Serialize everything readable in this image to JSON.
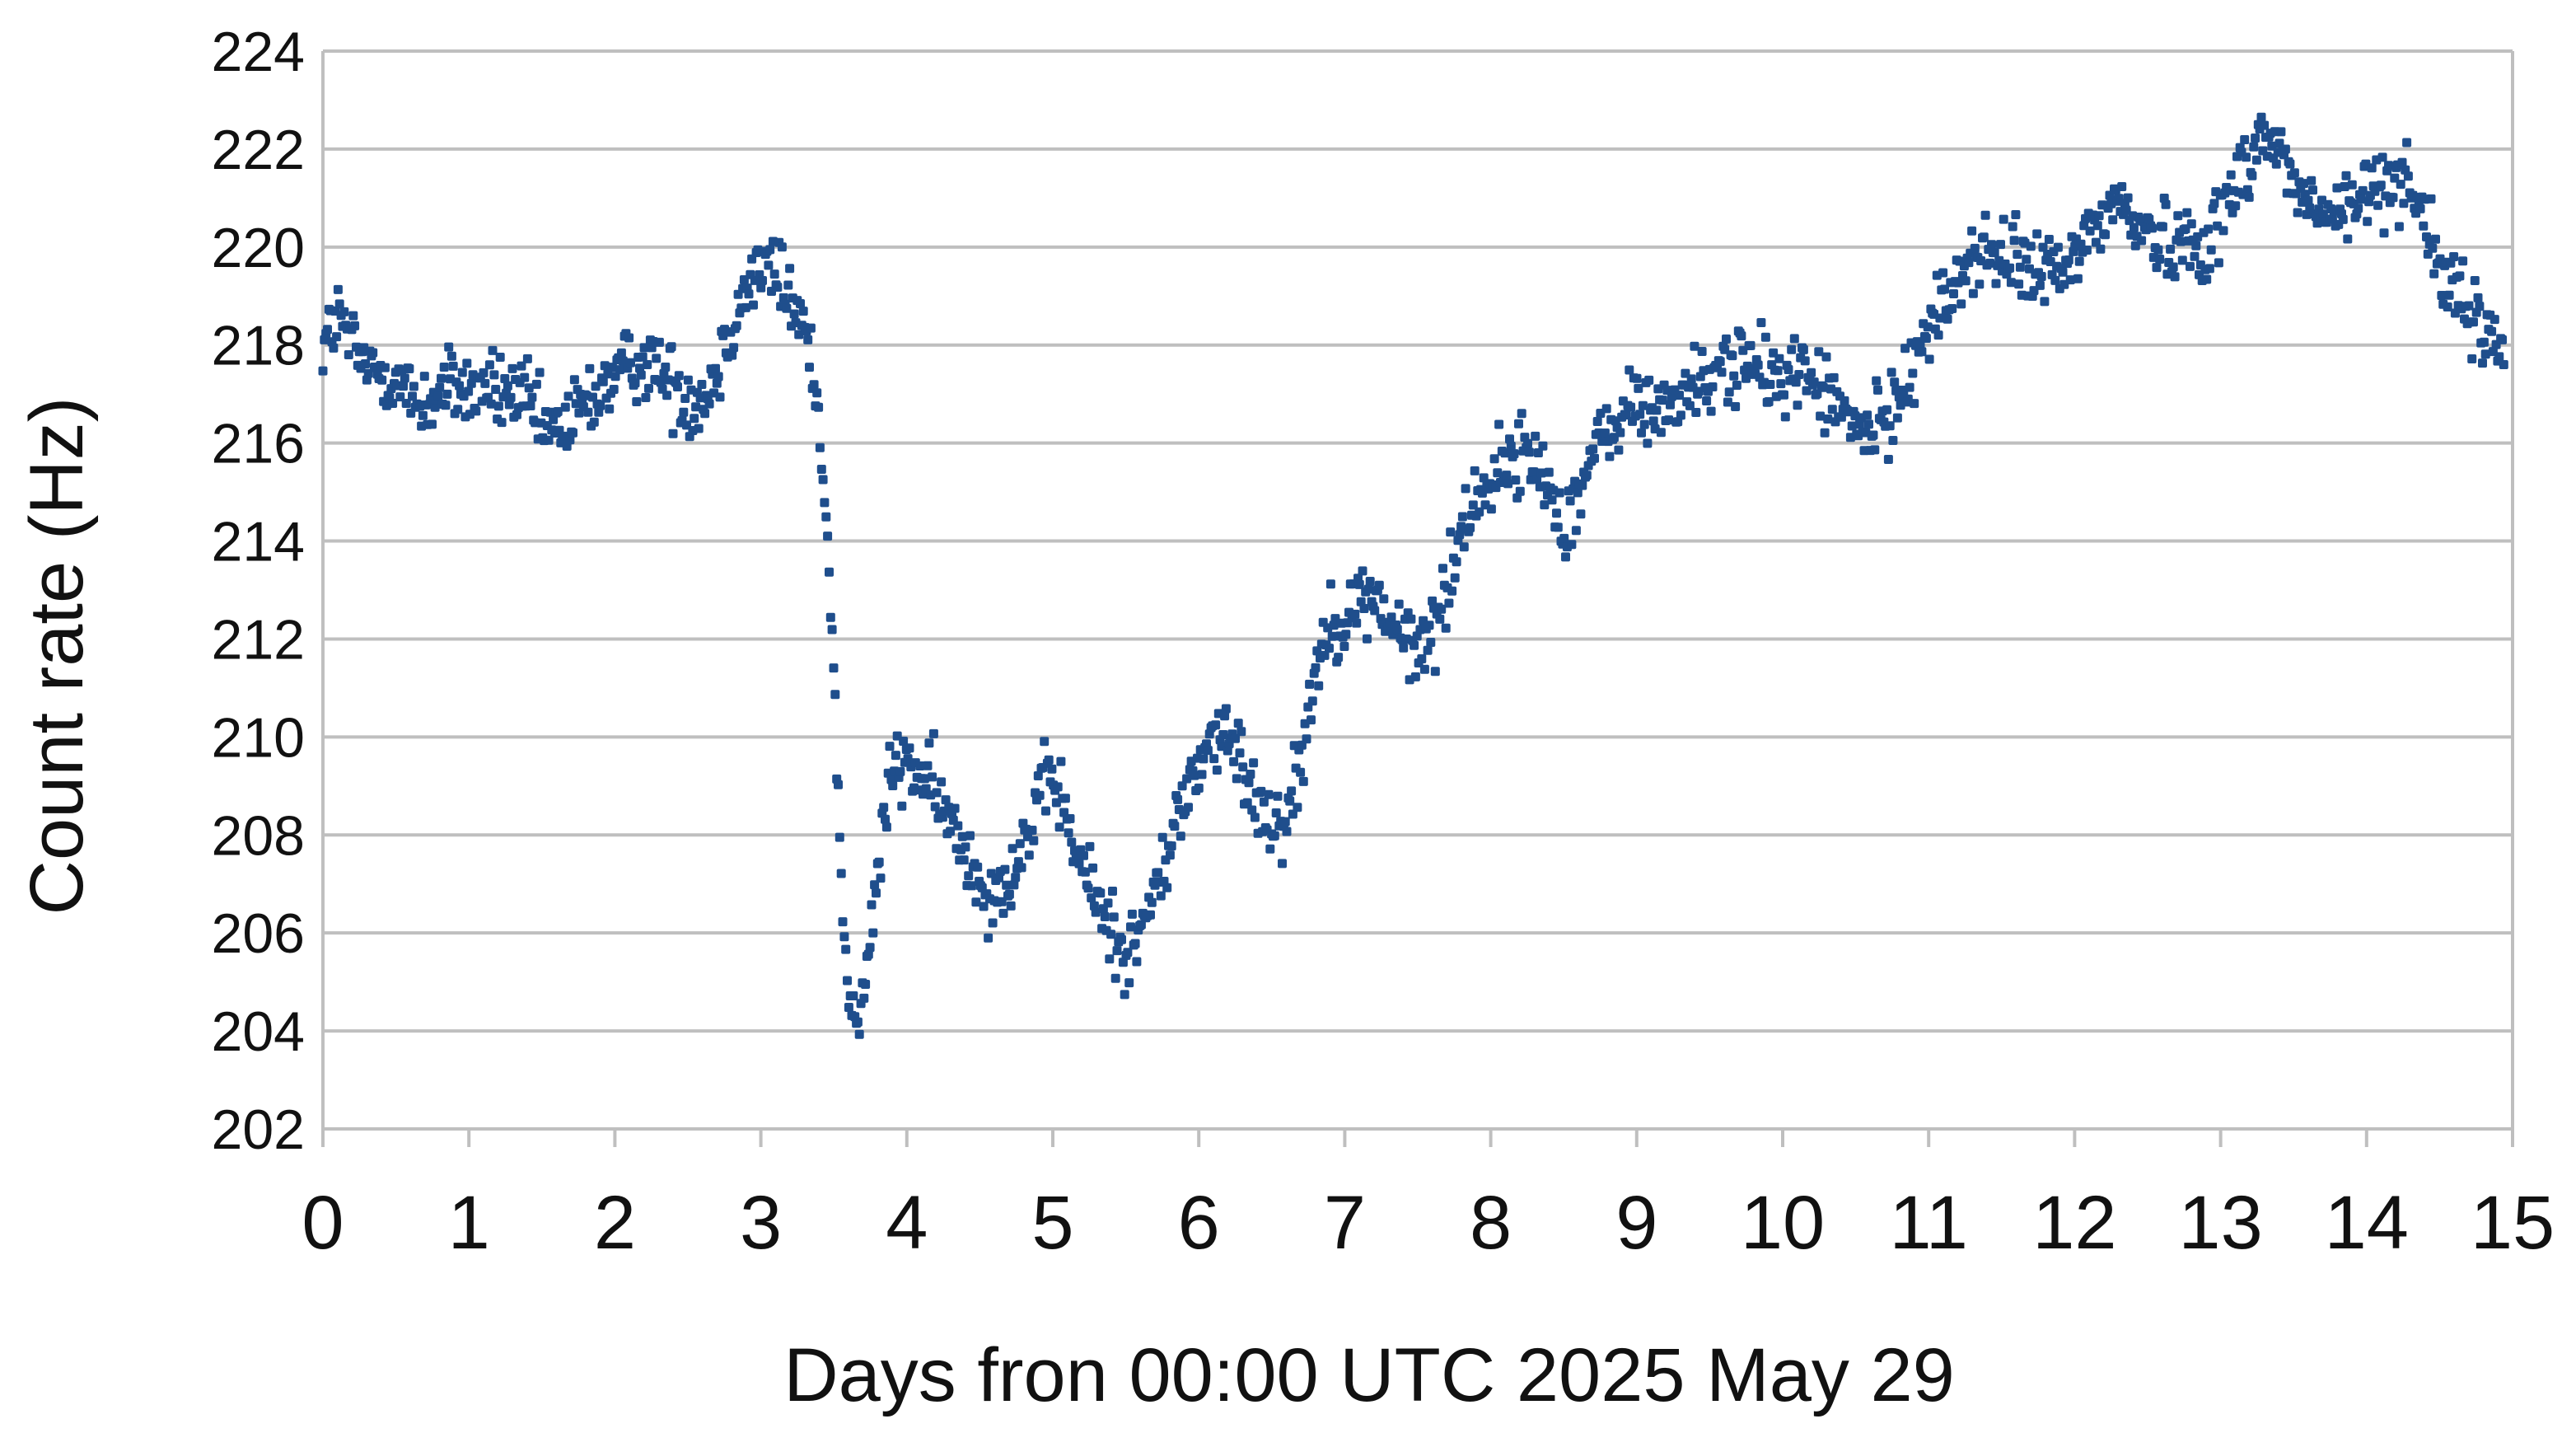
{
  "chart_data": {
    "type": "scatter",
    "title": "",
    "xlabel": "Days fron 00:00 UTC 2025 May 29",
    "ylabel": "Count rate (Hz)",
    "xlim": [
      0,
      15
    ],
    "ylim": [
      202,
      224
    ],
    "x_ticks": [
      0,
      1,
      2,
      3,
      4,
      5,
      6,
      7,
      8,
      9,
      10,
      11,
      12,
      13,
      14,
      15
    ],
    "y_ticks": [
      202,
      204,
      206,
      208,
      210,
      212,
      214,
      216,
      218,
      220,
      222,
      224
    ],
    "x_tick_labels": [
      "0",
      "1",
      "2",
      "3",
      "4",
      "5",
      "6",
      "7",
      "8",
      "9",
      "10",
      "11",
      "12",
      "13",
      "14",
      "15"
    ],
    "y_tick_labels": [
      "202",
      "204",
      "206",
      "208",
      "210",
      "212",
      "214",
      "216",
      "218",
      "220",
      "222",
      "224"
    ],
    "grid": "horizontal",
    "legend": "none",
    "marker_color": "#1f4e8c",
    "gridline_color": "#bfbfbf",
    "trend": [
      [
        0.0,
        218.0
      ],
      [
        0.1,
        218.6
      ],
      [
        0.2,
        218.0
      ],
      [
        0.3,
        217.5
      ],
      [
        0.4,
        217.5
      ],
      [
        0.5,
        217.3
      ],
      [
        0.6,
        216.9
      ],
      [
        0.7,
        216.8
      ],
      [
        0.8,
        217.0
      ],
      [
        0.9,
        217.2
      ],
      [
        1.0,
        217.0
      ],
      [
        1.1,
        217.2
      ],
      [
        1.2,
        217.0
      ],
      [
        1.3,
        217.0
      ],
      [
        1.4,
        216.8
      ],
      [
        1.5,
        216.3
      ],
      [
        1.6,
        216.2
      ],
      [
        1.7,
        216.5
      ],
      [
        1.8,
        216.8
      ],
      [
        1.9,
        217.1
      ],
      [
        2.0,
        217.3
      ],
      [
        2.1,
        217.6
      ],
      [
        2.2,
        217.7
      ],
      [
        2.3,
        217.5
      ],
      [
        2.4,
        217.2
      ],
      [
        2.5,
        216.9
      ],
      [
        2.6,
        216.9
      ],
      [
        2.7,
        217.5
      ],
      [
        2.8,
        218.5
      ],
      [
        2.9,
        219.2
      ],
      [
        3.0,
        219.6
      ],
      [
        3.1,
        219.5
      ],
      [
        3.2,
        219.0
      ],
      [
        3.3,
        218.3
      ],
      [
        3.35,
        217.5
      ],
      [
        3.4,
        216.5
      ],
      [
        3.45,
        214.5
      ],
      [
        3.5,
        211.5
      ],
      [
        3.52,
        209.5
      ],
      [
        3.55,
        207.0
      ],
      [
        3.6,
        204.8
      ],
      [
        3.65,
        204.0
      ],
      [
        3.7,
        204.6
      ],
      [
        3.75,
        205.8
      ],
      [
        3.8,
        207.3
      ],
      [
        3.85,
        208.4
      ],
      [
        3.9,
        209.3
      ],
      [
        4.0,
        209.5
      ],
      [
        4.1,
        209.2
      ],
      [
        4.2,
        208.8
      ],
      [
        4.3,
        208.2
      ],
      [
        4.4,
        207.7
      ],
      [
        4.5,
        207.1
      ],
      [
        4.6,
        206.8
      ],
      [
        4.7,
        207.2
      ],
      [
        4.8,
        207.8
      ],
      [
        4.9,
        208.6
      ],
      [
        5.0,
        209.2
      ],
      [
        5.05,
        208.9
      ],
      [
        5.1,
        208.2
      ],
      [
        5.2,
        207.3
      ],
      [
        5.3,
        206.7
      ],
      [
        5.4,
        206.1
      ],
      [
        5.5,
        205.6
      ],
      [
        5.6,
        206.0
      ],
      [
        5.7,
        206.8
      ],
      [
        5.8,
        207.8
      ],
      [
        5.9,
        208.7
      ],
      [
        6.0,
        209.5
      ],
      [
        6.1,
        210.0
      ],
      [
        6.2,
        209.9
      ],
      [
        6.3,
        209.4
      ],
      [
        6.4,
        208.7
      ],
      [
        6.5,
        208.3
      ],
      [
        6.6,
        208.4
      ],
      [
        6.7,
        209.5
      ],
      [
        6.75,
        210.5
      ],
      [
        6.8,
        211.5
      ],
      [
        6.9,
        212.3
      ],
      [
        7.0,
        212.5
      ],
      [
        7.1,
        212.7
      ],
      [
        7.2,
        212.9
      ],
      [
        7.3,
        212.4
      ],
      [
        7.4,
        212.0
      ],
      [
        7.5,
        211.7
      ],
      [
        7.6,
        212.2
      ],
      [
        7.7,
        213.0
      ],
      [
        7.8,
        214.2
      ],
      [
        7.9,
        215.0
      ],
      [
        8.0,
        215.2
      ],
      [
        8.1,
        215.6
      ],
      [
        8.2,
        215.8
      ],
      [
        8.3,
        215.6
      ],
      [
        8.4,
        215.1
      ],
      [
        8.5,
        214.3
      ],
      [
        8.6,
        215.0
      ],
      [
        8.7,
        215.7
      ],
      [
        8.8,
        216.2
      ],
      [
        8.9,
        216.6
      ],
      [
        9.0,
        216.8
      ],
      [
        9.1,
        216.6
      ],
      [
        9.2,
        216.8
      ],
      [
        9.3,
        217.0
      ],
      [
        9.4,
        217.1
      ],
      [
        9.5,
        217.2
      ],
      [
        9.6,
        217.6
      ],
      [
        9.7,
        217.8
      ],
      [
        9.8,
        217.5
      ],
      [
        9.9,
        217.3
      ],
      [
        10.0,
        217.4
      ],
      [
        10.1,
        217.5
      ],
      [
        10.2,
        217.3
      ],
      [
        10.3,
        217.0
      ],
      [
        10.4,
        216.6
      ],
      [
        10.5,
        216.3
      ],
      [
        10.6,
        216.2
      ],
      [
        10.7,
        216.4
      ],
      [
        10.8,
        217.0
      ],
      [
        10.9,
        217.8
      ],
      [
        11.0,
        218.3
      ],
      [
        11.1,
        218.8
      ],
      [
        11.2,
        219.4
      ],
      [
        11.3,
        219.8
      ],
      [
        11.4,
        219.9
      ],
      [
        11.5,
        219.7
      ],
      [
        11.6,
        219.7
      ],
      [
        11.7,
        219.6
      ],
      [
        11.8,
        219.5
      ],
      [
        11.9,
        219.4
      ],
      [
        12.0,
        219.8
      ],
      [
        12.1,
        220.3
      ],
      [
        12.2,
        220.7
      ],
      [
        12.3,
        220.9
      ],
      [
        12.4,
        220.6
      ],
      [
        12.5,
        220.3
      ],
      [
        12.6,
        220.1
      ],
      [
        12.7,
        220.1
      ],
      [
        12.8,
        220.2
      ],
      [
        12.9,
        220.0
      ],
      [
        13.0,
        220.6
      ],
      [
        13.1,
        221.3
      ],
      [
        13.2,
        221.9
      ],
      [
        13.3,
        222.3
      ],
      [
        13.4,
        222.0
      ],
      [
        13.5,
        221.3
      ],
      [
        13.6,
        220.8
      ],
      [
        13.7,
        220.7
      ],
      [
        13.8,
        220.6
      ],
      [
        13.9,
        220.8
      ],
      [
        14.0,
        221.1
      ],
      [
        14.1,
        221.3
      ],
      [
        14.2,
        221.4
      ],
      [
        14.3,
        221.5
      ],
      [
        14.4,
        220.5
      ],
      [
        14.5,
        219.6
      ],
      [
        14.6,
        219.0
      ],
      [
        14.7,
        218.6
      ],
      [
        14.8,
        218.3
      ],
      [
        14.9,
        218.0
      ]
    ]
  }
}
